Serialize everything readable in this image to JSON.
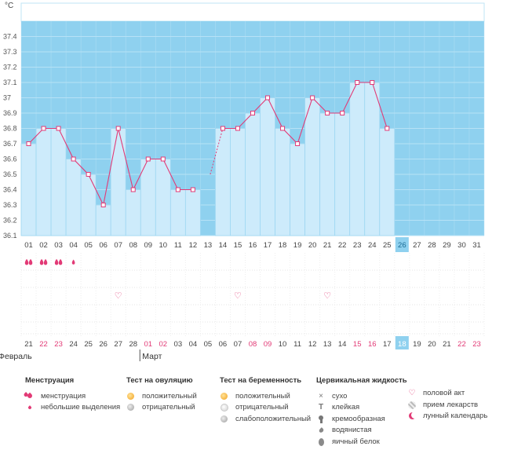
{
  "chart_data": {
    "type": "line",
    "ylabel": "°C",
    "y_ticks": [
      "36.1",
      "36.2",
      "36.3",
      "36.4",
      "36.5",
      "36.6",
      "36.7",
      "36.8",
      "36.9",
      "37",
      "37.1",
      "37.2",
      "37.3",
      "37.4"
    ],
    "ylim": [
      36.1,
      37.5
    ],
    "cycle_days": [
      "01",
      "02",
      "03",
      "04",
      "05",
      "06",
      "07",
      "08",
      "09",
      "10",
      "11",
      "12",
      "13",
      "14",
      "15",
      "16",
      "17",
      "18",
      "19",
      "20",
      "21",
      "22",
      "23",
      "24",
      "25",
      "26",
      "27",
      "28",
      "29",
      "30",
      "31"
    ],
    "temperatures": [
      36.7,
      36.8,
      36.8,
      36.6,
      36.5,
      36.3,
      36.8,
      36.4,
      36.6,
      36.6,
      36.4,
      36.4,
      null,
      36.8,
      36.8,
      36.9,
      37.0,
      36.8,
      36.7,
      37.0,
      36.9,
      36.9,
      37.1,
      37.1,
      36.8,
      null,
      null,
      null,
      null,
      null,
      null
    ],
    "dashed_segment": {
      "from_day": "13",
      "to_day": "14",
      "from_temp": 36.5
    },
    "highlight_day": "26",
    "date_numbers": [
      "21",
      "22",
      "23",
      "24",
      "25",
      "26",
      "27",
      "28",
      "01",
      "02",
      "03",
      "04",
      "05",
      "06",
      "07",
      "08",
      "09",
      "10",
      "11",
      "12",
      "13",
      "14",
      "15",
      "16",
      "17",
      "18",
      "19",
      "20",
      "21",
      "22",
      "23"
    ],
    "red_dates": [
      1,
      2,
      8,
      9,
      15,
      16,
      22,
      23,
      29,
      30
    ],
    "today_index": 25,
    "months": [
      {
        "label": "Февраль",
        "start": 0
      },
      {
        "label": "Март",
        "start": 8
      }
    ],
    "menstruation": [
      {
        "day_index": 0,
        "kind": "heavy"
      },
      {
        "day_index": 1,
        "kind": "heavy"
      },
      {
        "day_index": 2,
        "kind": "heavy"
      },
      {
        "day_index": 3,
        "kind": "light"
      }
    ],
    "intercourse_days": [
      6,
      14,
      20
    ],
    "colors": {
      "plot_bg": "#8fd1ef",
      "bar": "#cdebfb",
      "bar_edge": "#9ed7f2",
      "line": "#e23a76",
      "marker_fill": "#ffffff",
      "grid": "#b7e2f6",
      "top_band": "#ffffff",
      "red_date": "#e23a76",
      "highlight": "#8fd1ef"
    }
  },
  "legend": {
    "menstruation": {
      "title": "Менструация",
      "items": [
        {
          "icon": "heavy-drop-icon",
          "label": "менструация"
        },
        {
          "icon": "light-drop-icon",
          "label": "небольшие выделения"
        }
      ]
    },
    "ovulation_test": {
      "title": "Тест на овуляцию",
      "items": [
        {
          "icon": "orange-circle-icon",
          "label": "положительный"
        },
        {
          "icon": "gray-circle-icon",
          "label": "отрицательный"
        }
      ]
    },
    "pregnancy_test": {
      "title": "Тест на беременность",
      "items": [
        {
          "icon": "orange-circle-icon",
          "label": "положительный"
        },
        {
          "icon": "light-circle-icon",
          "label": "отрицательный"
        },
        {
          "icon": "gray-circle-icon",
          "label": "слабоположительный"
        }
      ]
    },
    "cervical_fluid": {
      "title": "Цервикальная жидкость",
      "items": [
        {
          "icon": "x-icon",
          "label": "сухо"
        },
        {
          "icon": "t-icon",
          "label": "клейкая"
        },
        {
          "icon": "hook-icon",
          "label": "кремообразная"
        },
        {
          "icon": "water-drop-icon",
          "label": "водянистая"
        },
        {
          "icon": "egg-white-icon",
          "label": "яичный белок"
        }
      ]
    },
    "other": {
      "items": [
        {
          "icon": "heart-icon",
          "label": "половой акт"
        },
        {
          "icon": "pill-icon",
          "label": "прием лекарств"
        },
        {
          "icon": "moon-icon",
          "label": "лунный календарь"
        }
      ]
    }
  }
}
